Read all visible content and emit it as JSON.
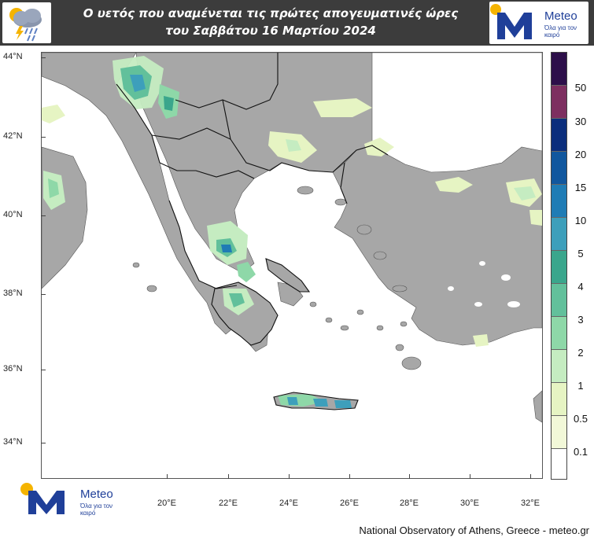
{
  "header": {
    "title_line1": "Ο υετός που αναμένεται τις πρώτες απογευματινές ώρες",
    "title_line2": "του Σαββάτου 16 Μαρτίου 2024",
    "badge_icon": "rain-cloud-lightning-icon",
    "brand_logo_icon": "meteo-m-sun-logo-icon"
  },
  "brand": {
    "name": "Meteo",
    "tagline": "Όλα για τον καιρό"
  },
  "map": {
    "latitude_labels": [
      "44°N",
      "42°N",
      "40°N",
      "38°N",
      "36°N",
      "34°N"
    ],
    "longitude_labels": [
      "20°E",
      "22°E",
      "24°E",
      "26°E",
      "28°E",
      "30°E",
      "32°E"
    ],
    "land_color": "#a7a7a7",
    "sea_color": "#ffffff",
    "border_color": "#111111"
  },
  "legend": {
    "labels": [
      "50",
      "30",
      "20",
      "15",
      "10",
      "5",
      "4",
      "3",
      "2",
      "1",
      "0.5",
      "0.1"
    ],
    "colors": [
      "#2d0f4a",
      "#7d2f60",
      "#0b2e7c",
      "#11579e",
      "#1f7cb5",
      "#3d9fbb",
      "#3aa68c",
      "#62c09b",
      "#8ed8a8",
      "#c5ecc1",
      "#e6f4c3",
      "#f2f8d8",
      "#ffffff"
    ]
  },
  "footer": {
    "credit": "National Observatory of Athens, Greece - meteo.gr"
  }
}
